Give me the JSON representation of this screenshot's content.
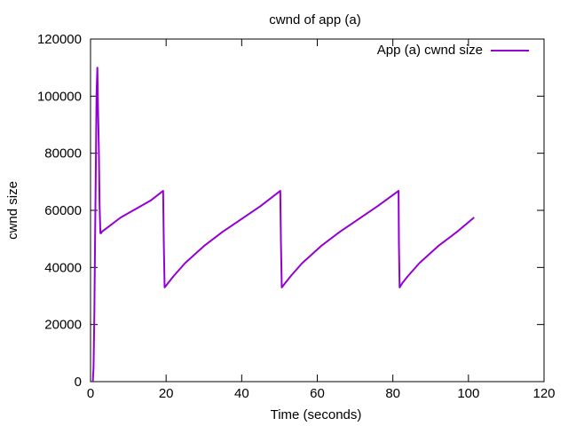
{
  "chart_data": {
    "type": "line",
    "title": "cwnd of app (a)",
    "xlabel": "Time (seconds)",
    "ylabel": "cwnd size",
    "xlim": [
      0,
      120
    ],
    "ylim": [
      0,
      120000
    ],
    "xticks": [
      0,
      20,
      40,
      60,
      80,
      100,
      120
    ],
    "yticks": [
      0,
      20000,
      40000,
      60000,
      80000,
      100000,
      120000
    ],
    "grid": false,
    "legend_position": "top-right",
    "series": [
      {
        "name": "App (a) cwnd size",
        "color": "#9400d3",
        "x": [
          0.6,
          0.8,
          1.0,
          1.2,
          1.4,
          1.6,
          1.8,
          2.0,
          2.2,
          2.4,
          2.6,
          2.8,
          3.0,
          5.0,
          8.0,
          12.0,
          16.0,
          19.2,
          19.4,
          19.6,
          20.5,
          22.0,
          25.0,
          30.0,
          35.0,
          40.0,
          45.0,
          50.2,
          50.4,
          50.6,
          51.5,
          53.0,
          56.0,
          61.0,
          66.0,
          71.0,
          76.0,
          81.5,
          81.6,
          81.8,
          82.5,
          84.0,
          87.0,
          92.0,
          97.0,
          101.5
        ],
        "y": [
          0,
          5000,
          23000,
          49000,
          76000,
          101000,
          110000,
          95000,
          81000,
          62000,
          52000,
          52000,
          52500,
          54500,
          57500,
          60500,
          63500,
          66800,
          48000,
          33000,
          34500,
          37000,
          41500,
          47500,
          52500,
          57000,
          61500,
          66800,
          48000,
          33000,
          34500,
          37000,
          41500,
          47500,
          52500,
          57000,
          61500,
          66800,
          48000,
          33000,
          34500,
          37000,
          41500,
          47500,
          52500,
          57500
        ]
      }
    ]
  }
}
